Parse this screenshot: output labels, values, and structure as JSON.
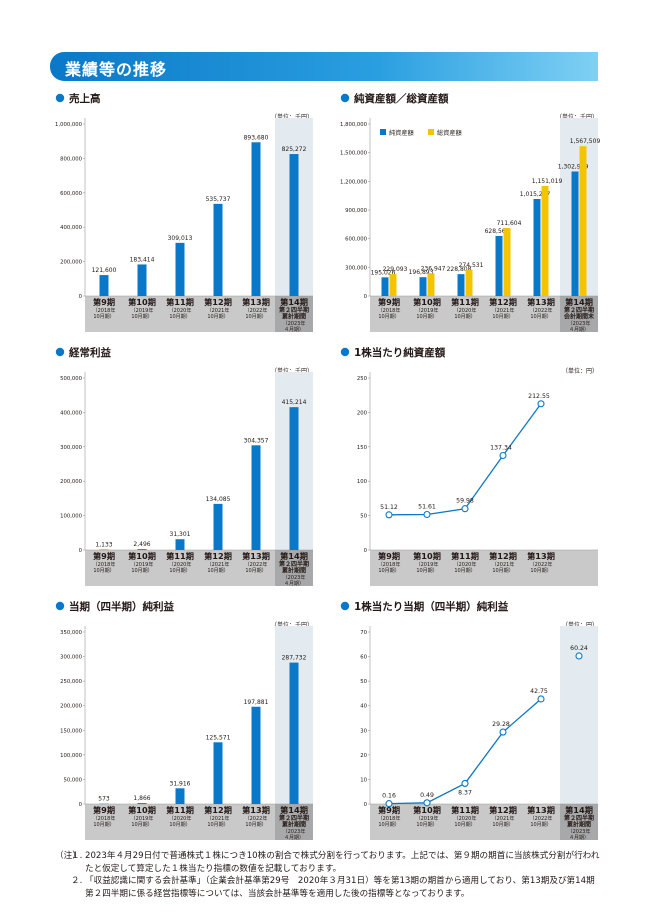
{
  "page_title": "業績等の推移",
  "chart_data": [
    {
      "id": "c1",
      "type": "bar",
      "title": "売上高",
      "unit": "（単位：千円）",
      "ylim": [
        0,
        1000000
      ],
      "yticks": [
        "0",
        "200,000",
        "400,000",
        "600,000",
        "800,000",
        "1,000,000"
      ],
      "categories": [
        {
          "name": "第9期",
          "sub": "（2018年\n10月期）"
        },
        {
          "name": "第10期",
          "sub": "（2019年\n10月期）"
        },
        {
          "name": "第11期",
          "sub": "（2020年\n10月期）"
        },
        {
          "name": "第12期",
          "sub": "（2021年\n10月期）"
        },
        {
          "name": "第13期",
          "sub": "（2022年\n10月期）"
        },
        {
          "name": "第14期\n第２四半期\n累計期間",
          "sub": "（2023年\n４月期）"
        }
      ],
      "series": [
        {
          "color": "#0a78c8",
          "values": [
            121600,
            183414,
            309013,
            535737,
            893680,
            825272
          ],
          "labels": [
            "121,600",
            "183,414",
            "309,013",
            "535,737",
            "893,680",
            "825,272"
          ]
        }
      ]
    },
    {
      "id": "c2",
      "type": "bar",
      "title": "純資産額／総資産額",
      "unit": "（単位：千円）",
      "ylim": [
        0,
        1800000
      ],
      "yticks": [
        "0",
        "300,000",
        "600,000",
        "900,000",
        "1,200,000",
        "1,500,000",
        "1,800,000"
      ],
      "legend": [
        "純資産額",
        "総資産額"
      ],
      "categories": [
        {
          "name": "第9期",
          "sub": "（2018年\n10月期）"
        },
        {
          "name": "第10期",
          "sub": "（2019年\n10月期）"
        },
        {
          "name": "第11期",
          "sub": "（2020年\n10月期）"
        },
        {
          "name": "第12期",
          "sub": "（2021年\n10月期）"
        },
        {
          "name": "第13期",
          "sub": "（2022年\n10月期）"
        },
        {
          "name": "第14期\n第２四半期\n会計期間末",
          "sub": "（2023年\n４月期）"
        }
      ],
      "series": [
        {
          "name": "純資産額",
          "color": "#0a78c8",
          "values": [
            195026,
            196893,
            228808,
            628566,
            1015247,
            1302979
          ],
          "labels": [
            "195,026",
            "196,893",
            "228,808",
            "628,566",
            "1,015,247",
            "1,302,979"
          ]
        },
        {
          "name": "総資産額",
          "color": "#f5c400",
          "values": [
            229093,
            236947,
            274531,
            711604,
            1151019,
            1567509
          ],
          "labels": [
            "229,093",
            "236,947",
            "274,531",
            "711,604",
            "1,151,019",
            "1,567,509"
          ]
        }
      ]
    },
    {
      "id": "c3",
      "type": "bar",
      "title": "経常利益",
      "unit": "（単位：千円）",
      "ylim": [
        0,
        500000
      ],
      "yticks": [
        "0",
        "100,000",
        "200,000",
        "300,000",
        "400,000",
        "500,000"
      ],
      "categories": [
        {
          "name": "第9期",
          "sub": "（2018年\n10月期）"
        },
        {
          "name": "第10期",
          "sub": "（2019年\n10月期）"
        },
        {
          "name": "第11期",
          "sub": "（2020年\n10月期）"
        },
        {
          "name": "第12期",
          "sub": "（2021年\n10月期）"
        },
        {
          "name": "第13期",
          "sub": "（2022年\n10月期）"
        },
        {
          "name": "第14期\n第２四半期\n累計期間",
          "sub": "（2023年\n４月期）"
        }
      ],
      "series": [
        {
          "color": "#0a78c8",
          "values": [
            1133,
            2496,
            31301,
            134085,
            304357,
            415214
          ],
          "labels": [
            "1,133",
            "2,496",
            "31,301",
            "134,085",
            "304,357",
            "415,214"
          ]
        }
      ]
    },
    {
      "id": "c4",
      "type": "line",
      "title": "1株当たり純資産額",
      "unit": "（単位：円）",
      "ylim": [
        0,
        250
      ],
      "yticks": [
        "0",
        "50",
        "100",
        "150",
        "200",
        "250"
      ],
      "categories": [
        {
          "name": "第9期",
          "sub": "（2018年\n10月期）"
        },
        {
          "name": "第10期",
          "sub": "（2019年\n10月期）"
        },
        {
          "name": "第11期",
          "sub": "（2020年\n10月期）"
        },
        {
          "name": "第12期",
          "sub": "（2021年\n10月期）"
        },
        {
          "name": "第13期",
          "sub": "（2022年\n10月期）"
        }
      ],
      "series": [
        {
          "color": "#0a78c8",
          "values": [
            51.12,
            51.61,
            59.98,
            137.34,
            212.55
          ],
          "labels": [
            "51.12",
            "51.61",
            "59.98",
            "137.34",
            "212.55"
          ]
        }
      ]
    },
    {
      "id": "c5",
      "type": "bar",
      "title": "当期（四半期）純利益",
      "unit": "（単位：千円）",
      "ylim": [
        0,
        350000
      ],
      "yticks": [
        "0",
        "50,000",
        "100,000",
        "150,000",
        "200,000",
        "250,000",
        "300,000",
        "350,000"
      ],
      "categories": [
        {
          "name": "第9期",
          "sub": "（2018年\n10月期）"
        },
        {
          "name": "第10期",
          "sub": "（2019年\n10月期）"
        },
        {
          "name": "第11期",
          "sub": "（2020年\n10月期）"
        },
        {
          "name": "第12期",
          "sub": "（2021年\n10月期）"
        },
        {
          "name": "第13期",
          "sub": "（2022年\n10月期）"
        },
        {
          "name": "第14期\n第２四半期\n累計期間",
          "sub": "（2023年\n４月期）"
        }
      ],
      "series": [
        {
          "color": "#0a78c8",
          "values": [
            573,
            1866,
            31916,
            125571,
            197881,
            287732
          ],
          "labels": [
            "573",
            "1,866",
            "31,916",
            "125,571",
            "197,881",
            "287,732"
          ]
        }
      ]
    },
    {
      "id": "c6",
      "type": "line",
      "title": "1株当たり当期（四半期）純利益",
      "unit": "（単位：円）",
      "ylim": [
        0,
        70
      ],
      "yticks": [
        "0",
        "10",
        "20",
        "30",
        "40",
        "50",
        "60",
        "70"
      ],
      "categories": [
        {
          "name": "第9期",
          "sub": "（2018年\n10月期）"
        },
        {
          "name": "第10期",
          "sub": "（2019年\n10月期）"
        },
        {
          "name": "第11期",
          "sub": "（2020年\n10月期）"
        },
        {
          "name": "第12期",
          "sub": "（2021年\n10月期）"
        },
        {
          "name": "第13期",
          "sub": "（2022年\n10月期）"
        },
        {
          "name": "第14期\n第２四半期\n累計期間",
          "sub": "（2023年\n４月期）"
        }
      ],
      "series": [
        {
          "color": "#0a78c8",
          "values": [
            0.16,
            0.49,
            8.37,
            29.28,
            42.75,
            60.24
          ],
          "labels": [
            "0.16",
            "0.49",
            "8.37",
            "29.28",
            "42.75",
            "60.24"
          ],
          "connected_points": 5
        }
      ]
    }
  ],
  "footnotes": {
    "lead": "（注）",
    "items": [
      {
        "num": "１.",
        "text": "2023年４月29日付で普通株式１株につき10株の割合で株式分割を行っております。上記では、第９期の期首に当該株式分割が行われたと仮定して算定した１株当たり指標の数値を記載しております。"
      },
      {
        "num": "２.",
        "text": "「収益認識に関する会計基準」（企業会計基準第29号　2020年３月31日）等を第13期の期首から適用しており、第13期及び第14期第２四半期に係る経営指標等については、当該会計基準等を適用した後の指標等となっております。"
      }
    ]
  }
}
